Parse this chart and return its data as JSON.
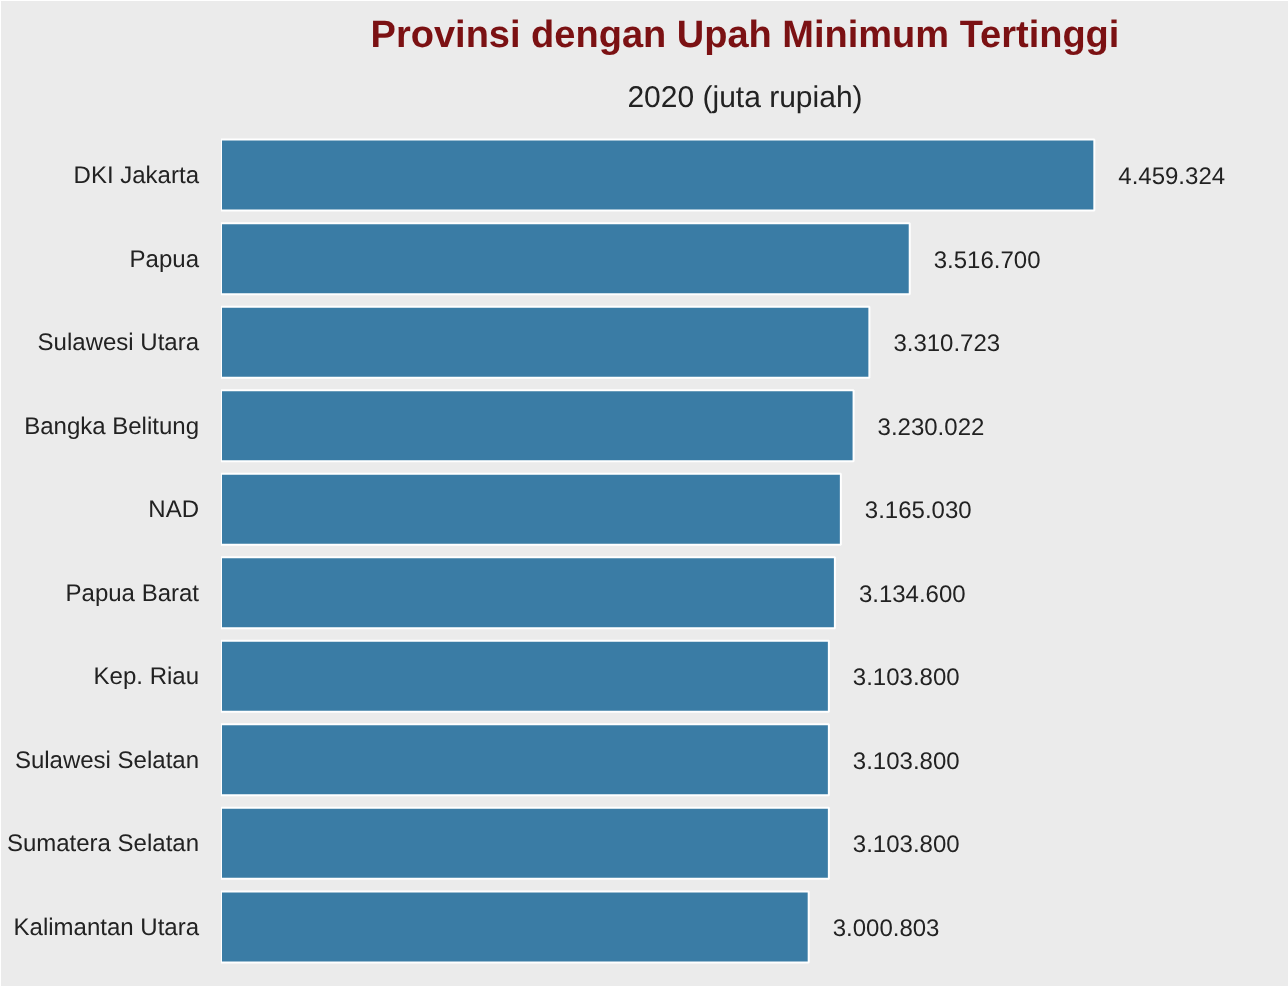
{
  "chart_data": {
    "type": "bar",
    "orientation": "horizontal",
    "title": "Provinsi dengan Upah Minimum Tertinggi",
    "subtitle": "2020 (juta rupiah)",
    "categories": [
      "DKI Jakarta",
      "Papua",
      "Sulawesi Utara",
      "Bangka Belitung",
      "NAD",
      "Papua Barat",
      "Kep. Riau",
      "Sulawesi Selatan",
      "Sumatera Selatan",
      "Kalimantan Utara"
    ],
    "values": [
      4459324,
      3516700,
      3310723,
      3230022,
      3165030,
      3134600,
      3103800,
      3103800,
      3103800,
      3000803
    ],
    "value_labels": [
      "4.459.324",
      "3.516.700",
      "3.310.723",
      "3.230.022",
      "3.165.030",
      "3.134.600",
      "3.103.800",
      "3.103.800",
      "3.103.800",
      "3.000.803"
    ],
    "color": "#3a7ca5"
  }
}
